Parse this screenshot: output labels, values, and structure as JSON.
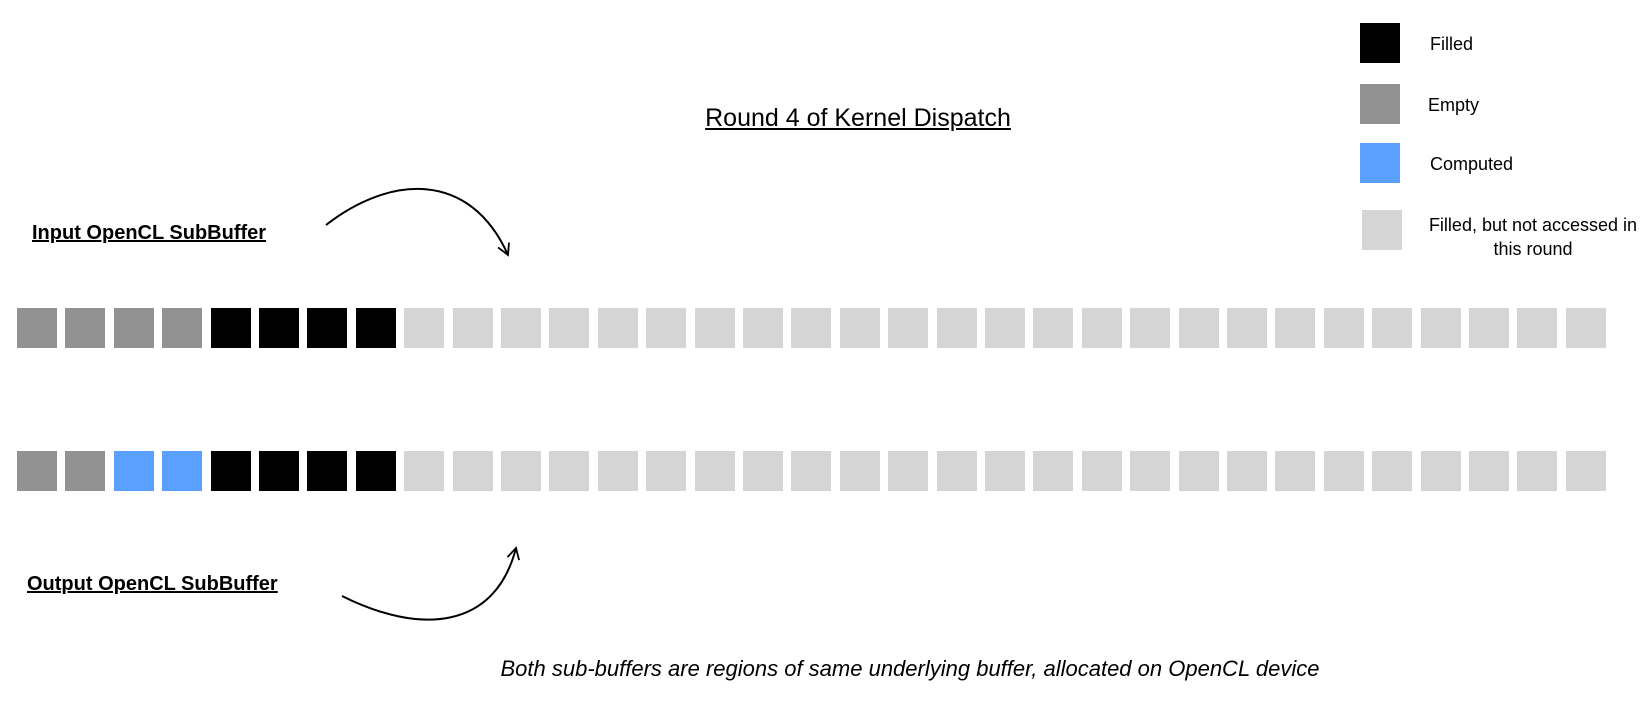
{
  "title": "Round 4 of Kernel Dispatch",
  "input_label": "Input OpenCL SubBuffer",
  "output_label": "Output OpenCL SubBuffer",
  "caption": "Both sub-buffers are regions of same underlying buffer, allocated on OpenCL device",
  "colors": {
    "filled": "#000000",
    "empty": "#929292",
    "computed": "#5aa0ff",
    "not_accessed": "#d5d5d5"
  },
  "legend": [
    {
      "state": "filled",
      "label": "Filled"
    },
    {
      "state": "empty",
      "label": "Empty"
    },
    {
      "state": "computed",
      "label": "Computed"
    },
    {
      "state": "not_accessed",
      "label": "Filled, but not accessed in this round"
    }
  ],
  "input_buffer": [
    "empty",
    "empty",
    "empty",
    "empty",
    "filled",
    "filled",
    "filled",
    "filled",
    "not_accessed",
    "not_accessed",
    "not_accessed",
    "not_accessed",
    "not_accessed",
    "not_accessed",
    "not_accessed",
    "not_accessed",
    "not_accessed",
    "not_accessed",
    "not_accessed",
    "not_accessed",
    "not_accessed",
    "not_accessed",
    "not_accessed",
    "not_accessed",
    "not_accessed",
    "not_accessed",
    "not_accessed",
    "not_accessed",
    "not_accessed",
    "not_accessed",
    "not_accessed",
    "not_accessed",
    "not_accessed"
  ],
  "output_buffer": [
    "empty",
    "empty",
    "computed",
    "computed",
    "filled",
    "filled",
    "filled",
    "filled",
    "not_accessed",
    "not_accessed",
    "not_accessed",
    "not_accessed",
    "not_accessed",
    "not_accessed",
    "not_accessed",
    "not_accessed",
    "not_accessed",
    "not_accessed",
    "not_accessed",
    "not_accessed",
    "not_accessed",
    "not_accessed",
    "not_accessed",
    "not_accessed",
    "not_accessed",
    "not_accessed",
    "not_accessed",
    "not_accessed",
    "not_accessed",
    "not_accessed",
    "not_accessed",
    "not_accessed",
    "not_accessed"
  ]
}
